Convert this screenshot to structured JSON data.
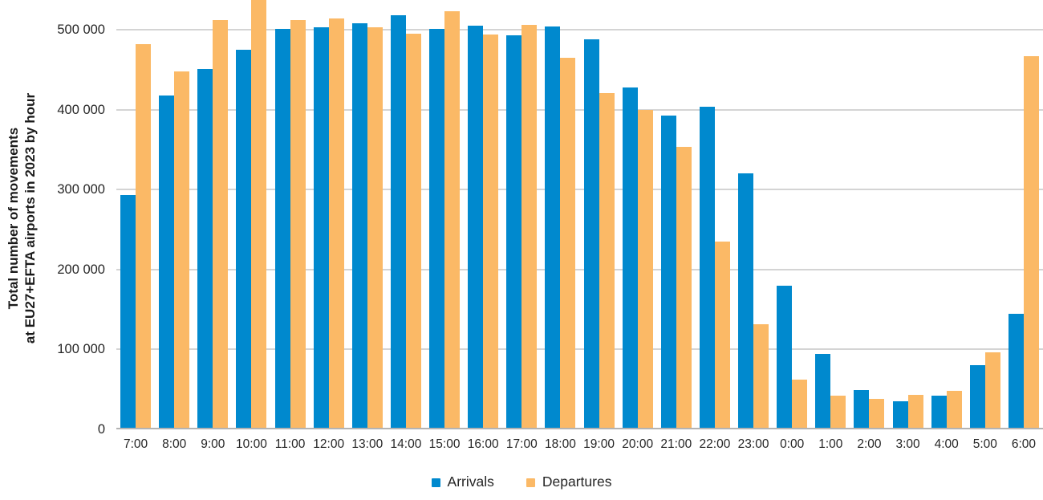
{
  "y_axis": {
    "title_line1": "Total number of movements",
    "title_line2": "at EU27+EFTA airports in 2023 by hour",
    "ticks": [
      {
        "value": 0,
        "label": "0"
      },
      {
        "value": 100000,
        "label": "100 000"
      },
      {
        "value": 200000,
        "label": "200 000"
      },
      {
        "value": 300000,
        "label": "300 000"
      },
      {
        "value": 400000,
        "label": "400 000"
      },
      {
        "value": 500000,
        "label": "500 000"
      }
    ]
  },
  "legend": [
    {
      "label": "Arrivals",
      "color": "#0089ce"
    },
    {
      "label": "Departures",
      "color": "#fbb966"
    }
  ],
  "colors": {
    "arrivals": "#0089ce",
    "departures": "#fbb966",
    "gridline": "#d4d4d4",
    "axis_line": "#b3b3b3",
    "text": "#262626"
  },
  "chart_data": {
    "type": "bar",
    "title": "",
    "xlabel": "",
    "ylabel": "Total number of movements at EU27+EFTA airports in 2023 by hour",
    "categories": [
      "7:00",
      "8:00",
      "9:00",
      "10:00",
      "11:00",
      "12:00",
      "13:00",
      "14:00",
      "15:00",
      "16:00",
      "17:00",
      "18:00",
      "19:00",
      "20:00",
      "21:00",
      "22:00",
      "23:00",
      "0:00",
      "1:00",
      "2:00",
      "3:00",
      "4:00",
      "5:00",
      "6:00"
    ],
    "series": [
      {
        "name": "Arrivals",
        "color": "#0089ce",
        "values": [
          293000,
          418000,
          451000,
          475000,
          501000,
          503000,
          508000,
          518000,
          501000,
          505000,
          493000,
          504000,
          488000,
          428000,
          393000,
          404000,
          320000,
          180000,
          94000,
          49000,
          35000,
          42000,
          80000,
          145000
        ]
      },
      {
        "name": "Departures",
        "color": "#fbb966",
        "values": [
          482000,
          448000,
          512000,
          540000,
          512000,
          514000,
          503000,
          495000,
          523000,
          494000,
          506000,
          465000,
          421000,
          400000,
          353000,
          235000,
          132000,
          62000,
          42000,
          38000,
          43000,
          48000,
          96000,
          467000
        ]
      }
    ],
    "ylim": [
      0,
      537000
    ],
    "grid": true,
    "legend_position": "bottom",
    "note": "10:00 Departures bar is clipped at the top edge of the image (value above visible axis range)"
  }
}
